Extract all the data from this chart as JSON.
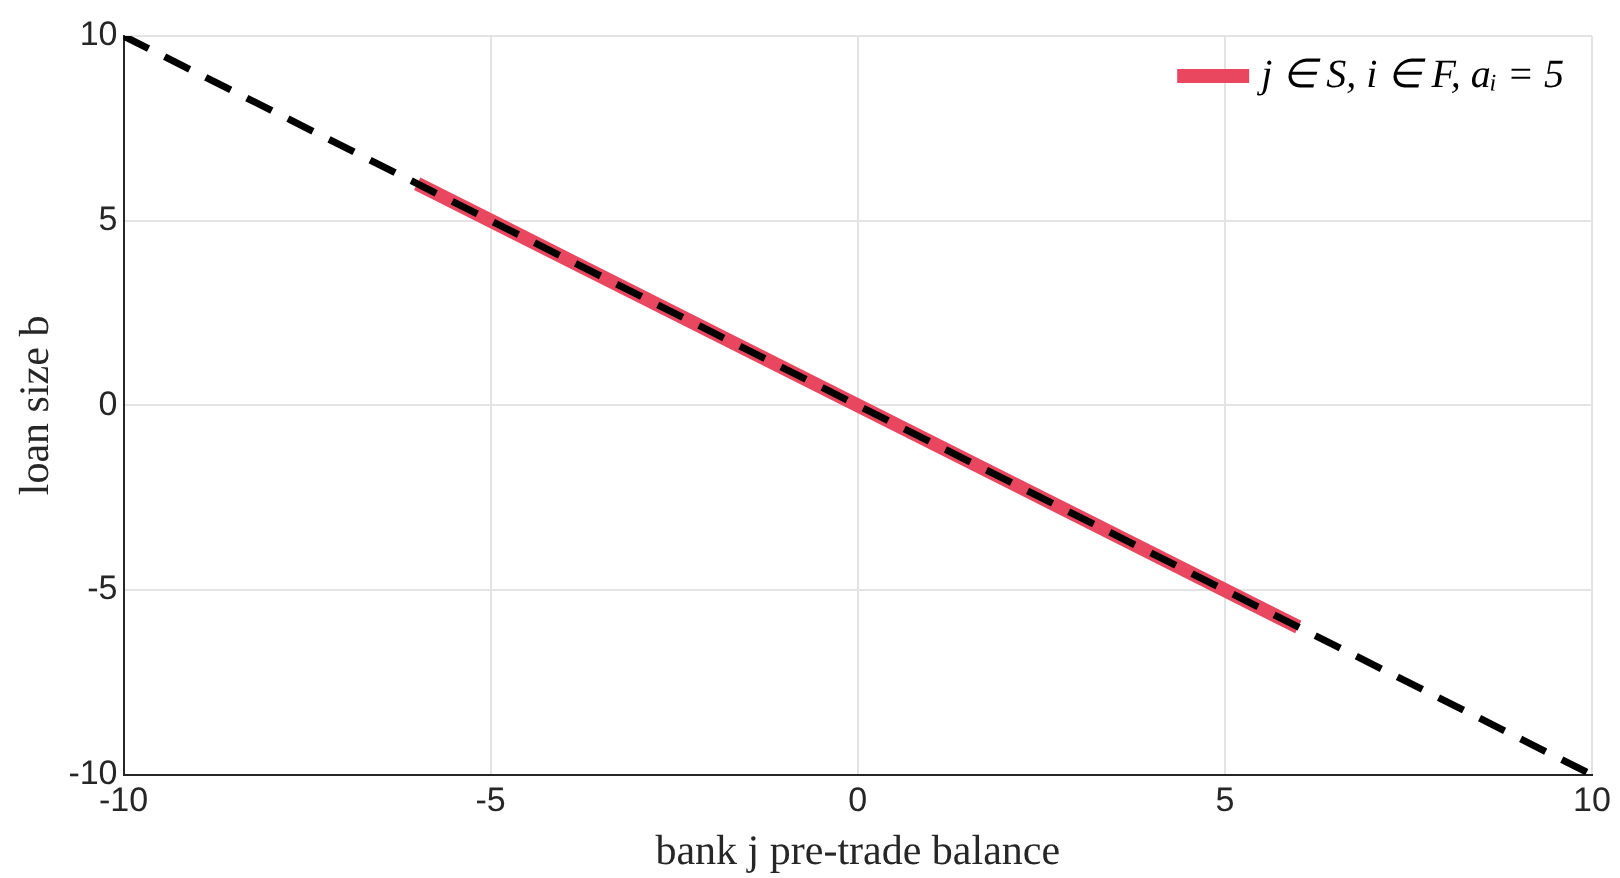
{
  "chart_data": {
    "type": "line",
    "xlabel": "bank j pre-trade balance",
    "ylabel": "loan size b",
    "xlim": [
      -10,
      10
    ],
    "xticks": [
      -10,
      -5,
      0,
      5,
      10
    ],
    "ylim": [
      -10,
      10
    ],
    "yticks": [
      -10,
      -5,
      0,
      5,
      10
    ],
    "grid": true,
    "legend": "top right",
    "marker": "none",
    "series": [
      {
        "name": "j ∈ S, i ∈ F, aᵢ = 5",
        "color": "#e8475f",
        "x": [
          -6,
          6
        ],
        "values": [
          6,
          -6
        ],
        "line_style": "solid"
      },
      {
        "color": "#000000",
        "x": [
          -10,
          10
        ],
        "values": [
          10,
          -10
        ],
        "line_style": "dashed"
      }
    ]
  }
}
